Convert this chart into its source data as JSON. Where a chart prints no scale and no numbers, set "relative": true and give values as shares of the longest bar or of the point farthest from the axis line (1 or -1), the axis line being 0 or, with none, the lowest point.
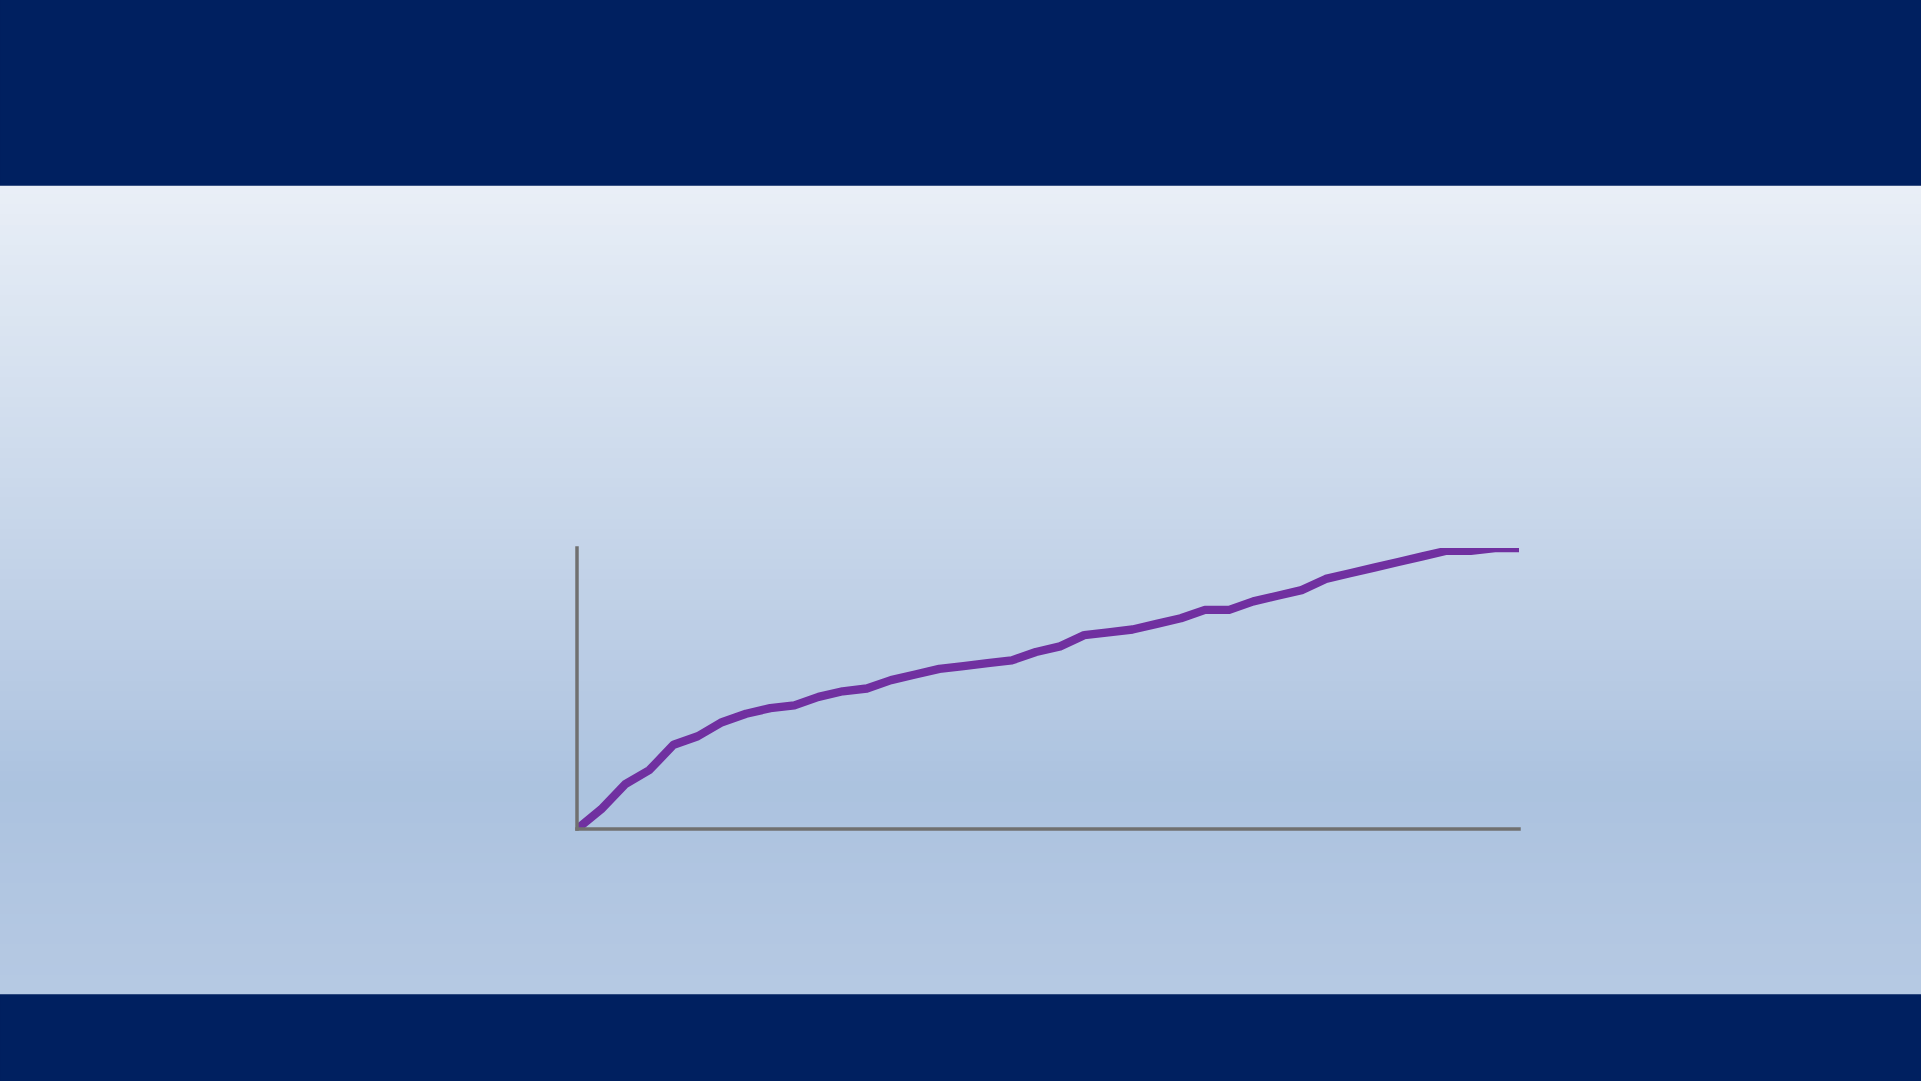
{
  "chart_data": {
    "type": "line",
    "relative": true,
    "color": "#7030a0",
    "marker": "none",
    "line_style": "solid",
    "grid": false,
    "legend": false,
    "categories": [
      null,
      null,
      null,
      null,
      null,
      null,
      null,
      null,
      null,
      null,
      null,
      null,
      null,
      null,
      null,
      null,
      null,
      null,
      null,
      null,
      null,
      null,
      null,
      null,
      null,
      null,
      null,
      null,
      null,
      null,
      null,
      null,
      null,
      null,
      null,
      null,
      null,
      null,
      null,
      null
    ],
    "values": [
      0,
      0.07,
      0.16,
      0.21,
      0.3,
      0.33,
      0.38,
      0.41,
      0.43,
      0.44,
      0.47,
      0.49,
      0.5,
      0.53,
      0.55,
      0.57,
      0.58,
      0.59,
      0.6,
      0.63,
      0.65,
      0.69,
      0.7,
      0.71,
      0.73,
      0.75,
      0.78,
      0.78,
      0.81,
      0.83,
      0.85,
      0.89,
      0.91,
      0.93,
      0.95,
      0.97,
      0.99,
      0.99,
      1,
      1
    ]
  }
}
